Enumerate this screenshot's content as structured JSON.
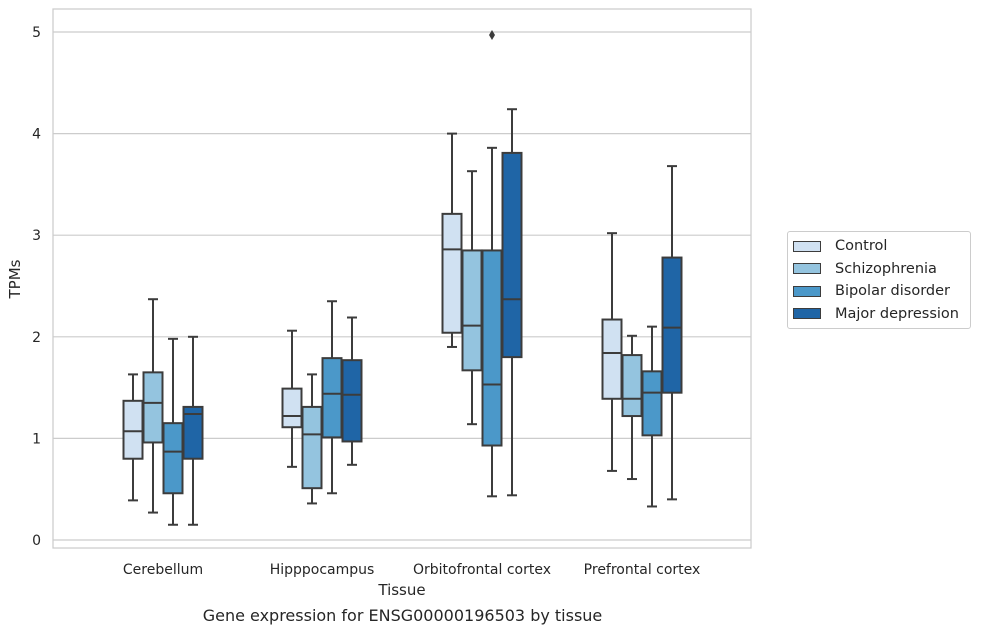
{
  "chart_data": {
    "type": "boxplot",
    "caption": "Gene expression for ENSG00000196503 by tissue",
    "xlabel": "Tissue",
    "ylabel": "TPMs",
    "ylim": [
      -0.08,
      5.23
    ],
    "yticks": [
      0,
      1,
      2,
      3,
      4,
      5
    ],
    "grid": true,
    "legend_position": "right",
    "categories": [
      "Cerebellum",
      "Hipppocampus",
      "Orbitofrontal cortex",
      "Prefrontal cortex"
    ],
    "series": [
      {
        "name": "Control",
        "color": "#d0e1f2",
        "boxes": [
          {
            "whisker_low": 0.39,
            "q1": 0.8,
            "median": 1.07,
            "q3": 1.37,
            "whisker_high": 1.63,
            "outliers": []
          },
          {
            "whisker_low": 0.72,
            "q1": 1.11,
            "median": 1.22,
            "q3": 1.49,
            "whisker_high": 2.06,
            "outliers": []
          },
          {
            "whisker_low": 1.9,
            "q1": 2.04,
            "median": 2.86,
            "q3": 3.21,
            "whisker_high": 4.0,
            "outliers": []
          },
          {
            "whisker_low": 0.68,
            "q1": 1.39,
            "median": 1.84,
            "q3": 2.17,
            "whisker_high": 3.02,
            "outliers": []
          }
        ]
      },
      {
        "name": "Schizophrenia",
        "color": "#94c4df",
        "boxes": [
          {
            "whisker_low": 0.27,
            "q1": 0.96,
            "median": 1.35,
            "q3": 1.65,
            "whisker_high": 2.37,
            "outliers": []
          },
          {
            "whisker_low": 0.36,
            "q1": 0.51,
            "median": 1.04,
            "q3": 1.31,
            "whisker_high": 1.63,
            "outliers": []
          },
          {
            "whisker_low": 1.14,
            "q1": 1.67,
            "median": 2.11,
            "q3": 2.85,
            "whisker_high": 3.63,
            "outliers": []
          },
          {
            "whisker_low": 0.6,
            "q1": 1.22,
            "median": 1.39,
            "q3": 1.82,
            "whisker_high": 2.01,
            "outliers": []
          }
        ]
      },
      {
        "name": "Bipolar disorder",
        "color": "#4b98c9",
        "boxes": [
          {
            "whisker_low": 0.15,
            "q1": 0.46,
            "median": 0.87,
            "q3": 1.15,
            "whisker_high": 1.98,
            "outliers": []
          },
          {
            "whisker_low": 0.46,
            "q1": 1.01,
            "median": 1.44,
            "q3": 1.79,
            "whisker_high": 2.35,
            "outliers": []
          },
          {
            "whisker_low": 0.43,
            "q1": 0.93,
            "median": 1.53,
            "q3": 2.85,
            "whisker_high": 3.86,
            "outliers": [
              4.97
            ]
          },
          {
            "whisker_low": 0.33,
            "q1": 1.03,
            "median": 1.45,
            "q3": 1.66,
            "whisker_high": 2.1,
            "outliers": []
          }
        ]
      },
      {
        "name": "Major depression",
        "color": "#1f65a6",
        "boxes": [
          {
            "whisker_low": 0.15,
            "q1": 0.8,
            "median": 1.24,
            "q3": 1.31,
            "whisker_high": 2.0,
            "outliers": []
          },
          {
            "whisker_low": 0.74,
            "q1": 0.97,
            "median": 1.43,
            "q3": 1.77,
            "whisker_high": 2.19,
            "outliers": []
          },
          {
            "whisker_low": 0.44,
            "q1": 1.8,
            "median": 2.37,
            "q3": 3.81,
            "whisker_high": 4.24,
            "outliers": []
          },
          {
            "whisker_low": 0.4,
            "q1": 1.45,
            "median": 2.09,
            "q3": 2.78,
            "whisker_high": 3.68,
            "outliers": []
          }
        ]
      }
    ]
  }
}
